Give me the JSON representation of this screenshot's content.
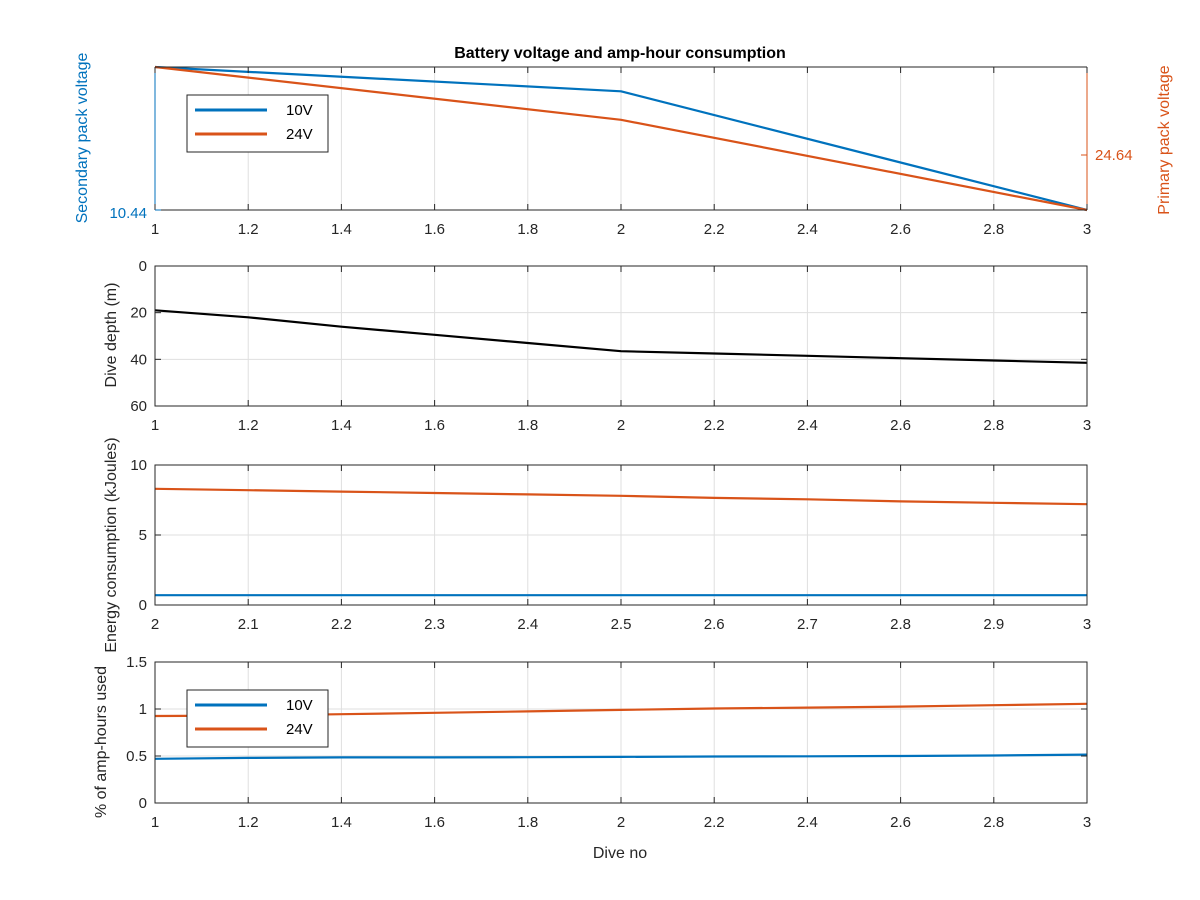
{
  "chart_data": [
    {
      "type": "line",
      "title": "Battery voltage and amp-hour consumption",
      "xlabel": "",
      "xlim": [
        1,
        3
      ],
      "xticks": [
        1,
        1.2,
        1.4,
        1.6,
        1.8,
        2,
        2.2,
        2.4,
        2.6,
        2.8,
        3
      ],
      "xtick_labels": [
        "1",
        "1.2",
        "1.4",
        "1.6",
        "1.8",
        "2",
        "2.2",
        "2.4",
        "2.6",
        "2.8",
        "3"
      ],
      "grid": true,
      "legend": {
        "location": "top-left",
        "entries": [
          "10V",
          "24V"
        ]
      },
      "y_left": {
        "label": "Secondary pack voltage",
        "color": "#0072BD",
        "ylim": [
          10.44,
          10.5
        ],
        "tick_labels": [
          "10.44"
        ],
        "tick_values": [
          10.44
        ]
      },
      "y_right": {
        "label": "Primary pack voltage",
        "color": "#D95319",
        "ylim": [
          24.59,
          24.72
        ],
        "tick_labels": [
          "24.64"
        ],
        "tick_values": [
          24.64
        ]
      },
      "series": [
        {
          "name": "10V",
          "axis": "left",
          "color": "#0072BD",
          "x": [
            1,
            2,
            3
          ],
          "y": [
            10.5,
            10.4898,
            10.44
          ]
        },
        {
          "name": "24V",
          "axis": "right",
          "color": "#D95319",
          "x": [
            1,
            2,
            3
          ],
          "y": [
            24.72,
            24.672,
            24.59
          ]
        }
      ]
    },
    {
      "type": "line",
      "title": "",
      "ylabel": "Dive depth (m)",
      "xlim": [
        1,
        3
      ],
      "ylim": [
        0,
        60
      ],
      "y_reversed": true,
      "xticks": [
        1,
        1.2,
        1.4,
        1.6,
        1.8,
        2,
        2.2,
        2.4,
        2.6,
        2.8,
        3
      ],
      "xtick_labels": [
        "1",
        "1.2",
        "1.4",
        "1.6",
        "1.8",
        "2",
        "2.2",
        "2.4",
        "2.6",
        "2.8",
        "3"
      ],
      "yticks": [
        0,
        20,
        40,
        60
      ],
      "ytick_labels": [
        "0",
        "20",
        "40",
        "60"
      ],
      "grid": true,
      "series": [
        {
          "color": "#000000",
          "x": [
            1,
            1.2,
            1.4,
            1.6,
            1.8,
            2,
            2.2,
            2.4,
            2.6,
            2.8,
            3
          ],
          "y": [
            19,
            22,
            26,
            29.5,
            33,
            36.5,
            37.5,
            38.5,
            39.5,
            40.5,
            41.5
          ]
        }
      ]
    },
    {
      "type": "line",
      "title": "",
      "ylabel": "Energy consumption (kJoules)",
      "xlim": [
        2,
        3
      ],
      "ylim": [
        0,
        10
      ],
      "xticks": [
        2,
        2.1,
        2.2,
        2.3,
        2.4,
        2.5,
        2.6,
        2.7,
        2.8,
        2.9,
        3
      ],
      "xtick_labels": [
        "2",
        "2.1",
        "2.2",
        "2.3",
        "2.4",
        "2.5",
        "2.6",
        "2.7",
        "2.8",
        "2.9",
        "3"
      ],
      "yticks": [
        0,
        5,
        10
      ],
      "ytick_labels": [
        "0",
        "5",
        "10"
      ],
      "grid": true,
      "series": [
        {
          "color": "#D95319",
          "x": [
            2,
            2.1,
            2.2,
            2.3,
            2.4,
            2.5,
            2.6,
            2.7,
            2.8,
            2.9,
            3
          ],
          "y": [
            8.3,
            8.2,
            8.1,
            8.0,
            7.9,
            7.8,
            7.65,
            7.55,
            7.4,
            7.3,
            7.2
          ]
        },
        {
          "color": "#0072BD",
          "x": [
            2,
            3
          ],
          "y": [
            0.7,
            0.7
          ]
        }
      ]
    },
    {
      "type": "line",
      "title": "",
      "xlabel": "Dive no",
      "ylabel": "% of amp-hours used",
      "xlim": [
        1,
        3
      ],
      "ylim": [
        0,
        1.5
      ],
      "xticks": [
        1,
        1.2,
        1.4,
        1.6,
        1.8,
        2,
        2.2,
        2.4,
        2.6,
        2.8,
        3
      ],
      "xtick_labels": [
        "1",
        "1.2",
        "1.4",
        "1.6",
        "1.8",
        "2",
        "2.2",
        "2.4",
        "2.6",
        "2.8",
        "3"
      ],
      "yticks": [
        0,
        0.5,
        1,
        1.5
      ],
      "ytick_labels": [
        "0",
        "0.5",
        "1",
        "1.5"
      ],
      "grid": true,
      "legend": {
        "location": "top-left",
        "entries": [
          "10V",
          "24V"
        ]
      },
      "series": [
        {
          "name": "10V",
          "color": "#0072BD",
          "x": [
            1,
            1.2,
            1.4,
            1.6,
            1.8,
            2,
            2.2,
            2.4,
            2.6,
            2.8,
            3
          ],
          "y": [
            0.47,
            0.48,
            0.485,
            0.485,
            0.487,
            0.49,
            0.495,
            0.497,
            0.5,
            0.505,
            0.515
          ]
        },
        {
          "name": "24V",
          "color": "#D95319",
          "x": [
            1,
            1.2,
            1.4,
            1.6,
            1.8,
            2,
            2.2,
            2.4,
            2.6,
            2.8,
            3
          ],
          "y": [
            0.925,
            0.93,
            0.945,
            0.96,
            0.975,
            0.99,
            1.005,
            1.015,
            1.025,
            1.04,
            1.055
          ]
        }
      ]
    }
  ]
}
